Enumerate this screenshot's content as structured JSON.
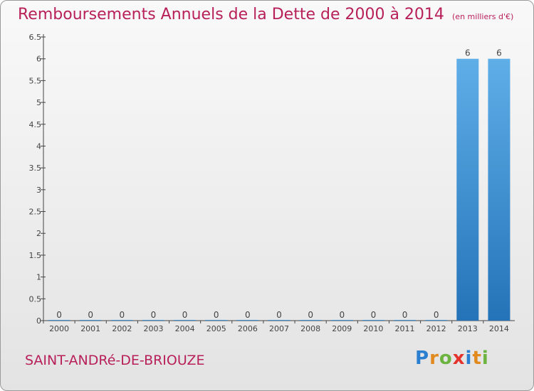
{
  "title": "Remboursements Annuels de la Dette de 2000 à 2014",
  "unit_note": "(en milliers d'€)",
  "location": "SAINT-ANDRé-DE-BRIOUZE",
  "brand": {
    "letters": [
      "P",
      "r",
      "o",
      "x",
      "i",
      "t",
      "i"
    ],
    "colors": [
      "#2a7fd0",
      "#e08a1f",
      "#6cb33f",
      "#e4332d",
      "#2a7fd0",
      "#e08a1f",
      "#6cb33f"
    ]
  },
  "colors": {
    "title": "#b8205a",
    "bar": "#3d8fd6",
    "bar_light": "#5faee8",
    "bar_dark": "#2473b8"
  },
  "chart_data": {
    "type": "bar",
    "categories": [
      "2000",
      "2001",
      "2002",
      "2003",
      "2004",
      "2005",
      "2006",
      "2007",
      "2008",
      "2009",
      "2010",
      "2011",
      "2012",
      "2013",
      "2014"
    ],
    "values": [
      0,
      0,
      0,
      0,
      0,
      0,
      0,
      0,
      0,
      0,
      0,
      0,
      0,
      6,
      6
    ],
    "data_labels": [
      "0",
      "0",
      "0",
      "0",
      "0",
      "0",
      "0",
      "0",
      "0",
      "0",
      "0",
      "0",
      "0",
      "6",
      "6"
    ],
    "y_ticks": [
      {
        "value": 0,
        "label": "0"
      },
      {
        "value": 0.5,
        "label": "0.5"
      },
      {
        "value": 1,
        "label": "1"
      },
      {
        "value": 1.5,
        "label": "1.5"
      },
      {
        "value": 2,
        "label": "2"
      },
      {
        "value": 2.5,
        "label": "2.5"
      },
      {
        "value": 3,
        "label": "3"
      },
      {
        "value": 3.5,
        "label": "3.5"
      },
      {
        "value": 4,
        "label": "4"
      },
      {
        "value": 4.5,
        "label": "4.5"
      },
      {
        "value": 5,
        "label": "5"
      },
      {
        "value": 5.5,
        "label": "5.5"
      },
      {
        "value": 6,
        "label": "6"
      },
      {
        "value": 6.5,
        "label": "6.5"
      }
    ],
    "ylim": [
      0,
      6.5
    ],
    "grid": false,
    "legend": "none"
  }
}
